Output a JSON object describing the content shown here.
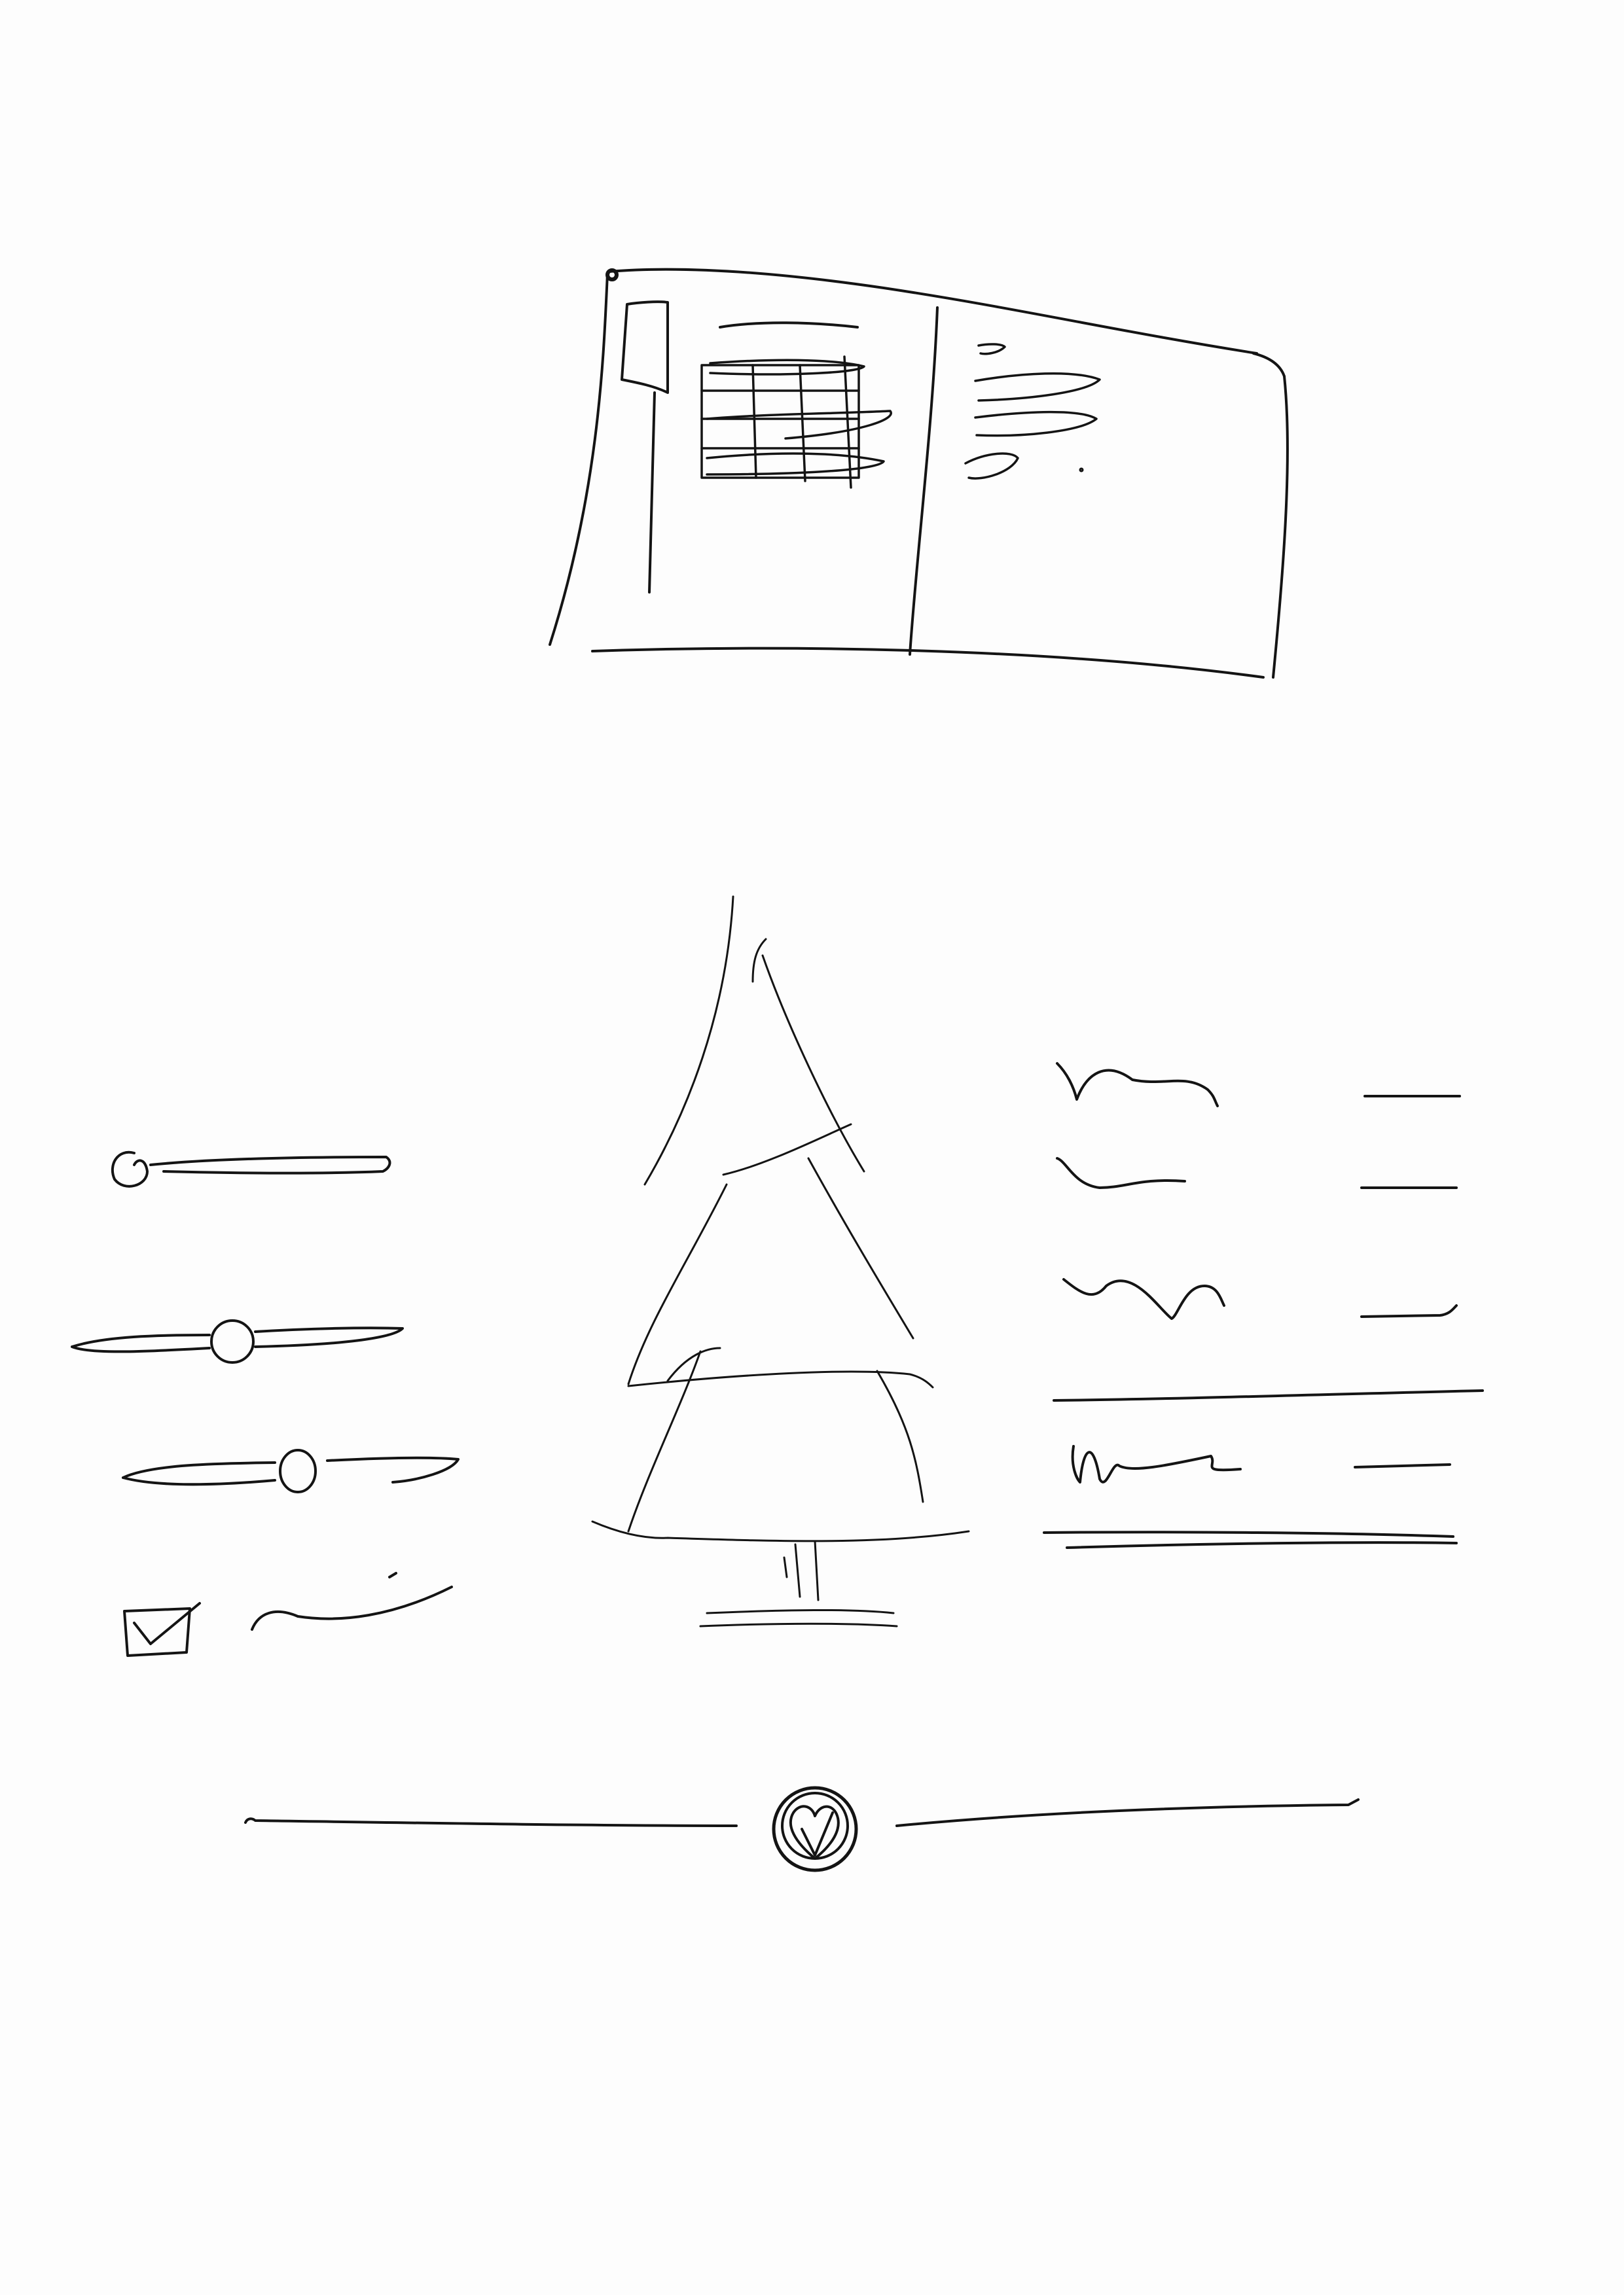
{
  "sketch": {
    "ink_color": "#141414",
    "paper_color": "#fdfdfd",
    "wireframe": {
      "table": {
        "rows": 4,
        "columns": 4
      },
      "detail_lines": 4
    },
    "controls": {
      "sliders": [
        {
          "position": 0.0
        },
        {
          "position": 0.48
        },
        {
          "position": 0.51
        }
      ],
      "checkbox": {
        "checked": true
      }
    },
    "tree": {
      "tiers": 3
    },
    "settings_rows": [
      {
        "has_value": true
      },
      {
        "has_value": true
      },
      {
        "has_value": true
      },
      {
        "separator_after": true
      },
      {
        "has_value": true
      }
    ],
    "progress": {
      "level": 0.54,
      "marker_icon": "heart-check-icon"
    }
  }
}
